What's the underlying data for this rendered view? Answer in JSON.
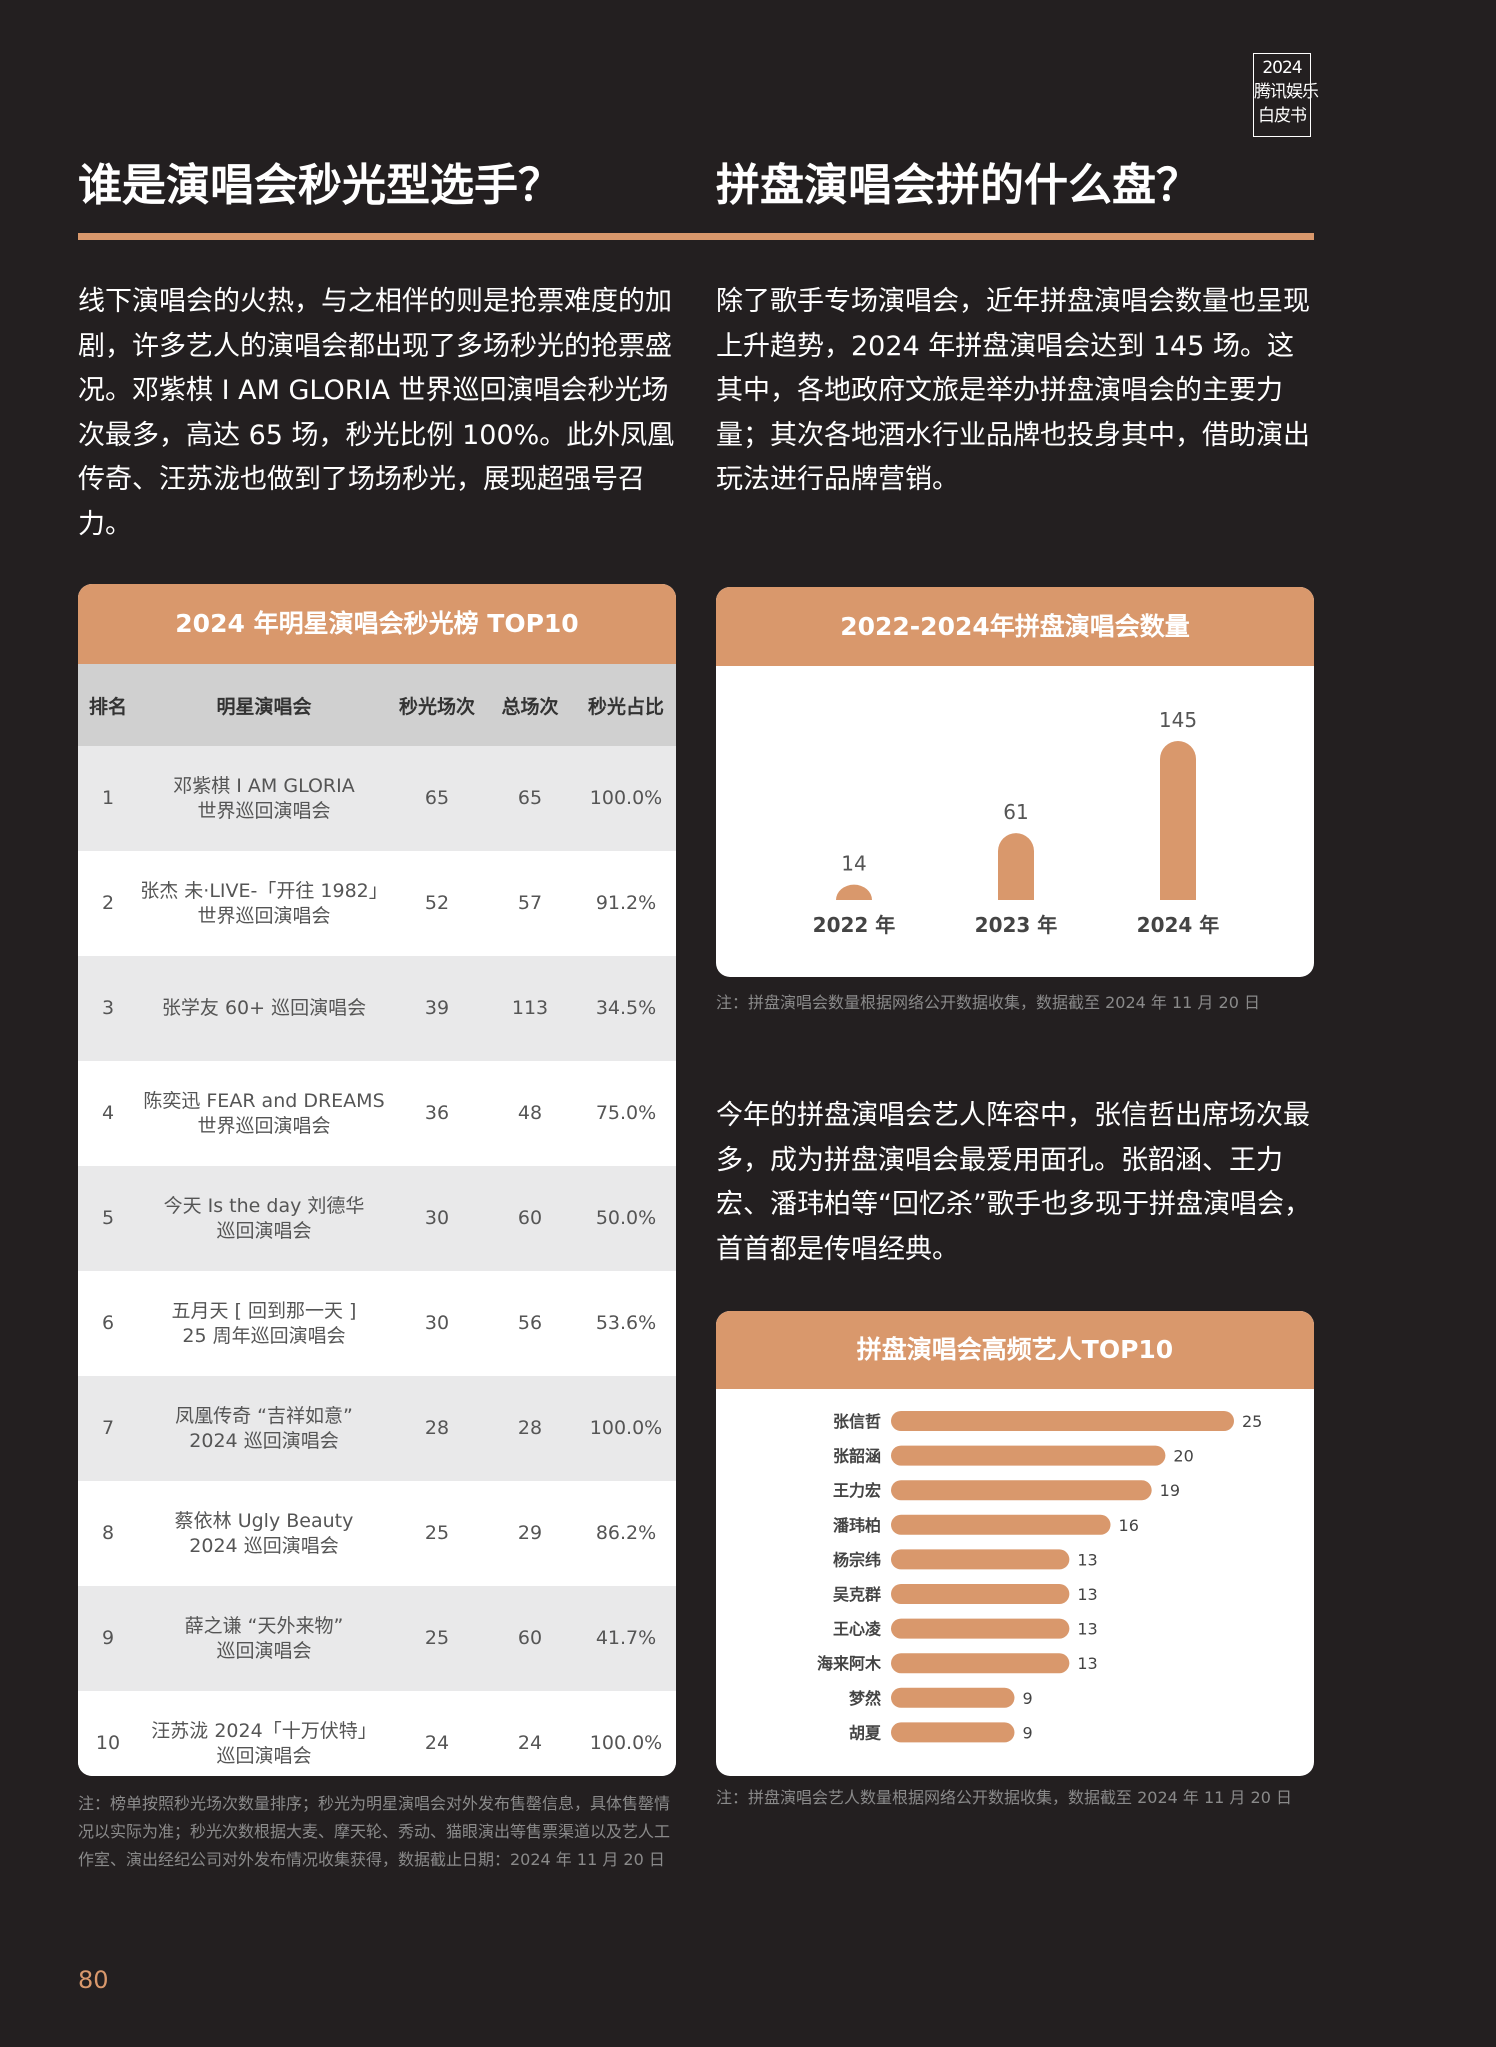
{
  "badge": {
    "line1": "2024",
    "line2": "腾讯娱乐",
    "line3": "白皮书"
  },
  "left": {
    "title": "谁是演唱会秒光型选手？",
    "para": "线下演唱会的火热，与之相伴的则是抢票难度的加剧，许多艺人的演唱会都出现了多场秒光的抢票盛况。邓紫棋 I AM GLORIA 世界巡回演唱会秒光场次最多，高达 65 场，秒光比例 100%。此外凤凰传奇、汪苏泷也做到了场场秒光，展现超强号召力。",
    "table": {
      "title": "2024 年明星演唱会秒光榜 TOP10",
      "headers": [
        "排名",
        "明星演唱会",
        "秒光场次",
        "总场次",
        "秒光占比"
      ],
      "rows": [
        {
          "rank": "1",
          "name1": "邓紫棋 I AM GLORIA",
          "name2": "世界巡回演唱会",
          "sold": "65",
          "total": "65",
          "ratio": "100.0%"
        },
        {
          "rank": "2",
          "name1": "张杰 未·LIVE-「开往 1982」",
          "name2": "世界巡回演唱会",
          "sold": "52",
          "total": "57",
          "ratio": "91.2%"
        },
        {
          "rank": "3",
          "name1": "张学友 60+ 巡回演唱会",
          "name2": "",
          "sold": "39",
          "total": "113",
          "ratio": "34.5%"
        },
        {
          "rank": "4",
          "name1": "陈奕迅 FEAR and DREAMS",
          "name2": "世界巡回演唱会",
          "sold": "36",
          "total": "48",
          "ratio": "75.0%"
        },
        {
          "rank": "5",
          "name1": "今天 Is the day 刘德华",
          "name2": "巡回演唱会",
          "sold": "30",
          "total": "60",
          "ratio": "50.0%"
        },
        {
          "rank": "6",
          "name1": "五月天 [ 回到那一天 ]",
          "name2": "25 周年巡回演唱会",
          "sold": "30",
          "total": "56",
          "ratio": "53.6%"
        },
        {
          "rank": "7",
          "name1": "凤凰传奇 “吉祥如意”",
          "name2": "2024 巡回演唱会",
          "sold": "28",
          "total": "28",
          "ratio": "100.0%"
        },
        {
          "rank": "8",
          "name1": "蔡依林 Ugly Beauty",
          "name2": "2024 巡回演唱会",
          "sold": "25",
          "total": "29",
          "ratio": "86.2%"
        },
        {
          "rank": "9",
          "name1": "薛之谦 “天外来物”",
          "name2": "巡回演唱会",
          "sold": "25",
          "total": "60",
          "ratio": "41.7%"
        },
        {
          "rank": "10",
          "name1": "汪苏泷 2024「十万伏特」",
          "name2": "巡回演唱会",
          "sold": "24",
          "total": "24",
          "ratio": "100.0%"
        }
      ],
      "note": "注：榜单按照秒光场次数量排序；秒光为明星演唱会对外发布售罄信息，具体售罄情况以实际为准；秒光次数根据大麦、摩天轮、秀动、猫眼演出等售票渠道以及艺人工作室、演出经纪公司对外发布情况收集获得，数据截止日期：2024 年 11 月 20 日"
    }
  },
  "right": {
    "title": "拼盘演唱会拼的什么盘？",
    "para1": "除了歌手专场演唱会，近年拼盘演唱会数量也呈现上升趋势，2024 年拼盘演唱会达到 145 场。这其中，各地政府文旅是举办拼盘演唱会的主要力量；其次各地酒水行业品牌也投身其中，借助演出玩法进行品牌营销。",
    "chart1_note": "注：拼盘演唱会数量根据网络公开数据收集，数据截至 2024 年 11 月 20 日",
    "para2": "今年的拼盘演唱会艺人阵容中，张信哲出席场次最多，成为拼盘演唱会最爱用面孔。张韶涵、王力宏、潘玮柏等“回忆杀”歌手也多现于拼盘演唱会，首首都是传唱经典。",
    "chart2_note": "注：拼盘演唱会艺人数量根据网络公开数据收集，数据截至 2024 年 11 月 20 日"
  },
  "page_number": "80",
  "colors": {
    "accent": "#d9986c",
    "background": "#231f20"
  },
  "chart_data": [
    {
      "type": "bar",
      "title": "2022-2024年拼盘演唱会数量",
      "categories": [
        "2022 年",
        "2023 年",
        "2024 年"
      ],
      "values": [
        14,
        61,
        145
      ],
      "ylim": [
        0,
        145
      ]
    },
    {
      "type": "bar",
      "orientation": "horizontal",
      "title": "拼盘演唱会高频艺人TOP10",
      "categories": [
        "张信哲",
        "张韶涵",
        "王力宏",
        "潘玮柏",
        "杨宗纬",
        "吴克群",
        "王心凌",
        "海来阿木",
        "梦然",
        "胡夏"
      ],
      "values": [
        25,
        20,
        19,
        16,
        13,
        13,
        13,
        13,
        9,
        9
      ],
      "xlim": [
        0,
        25
      ]
    }
  ]
}
